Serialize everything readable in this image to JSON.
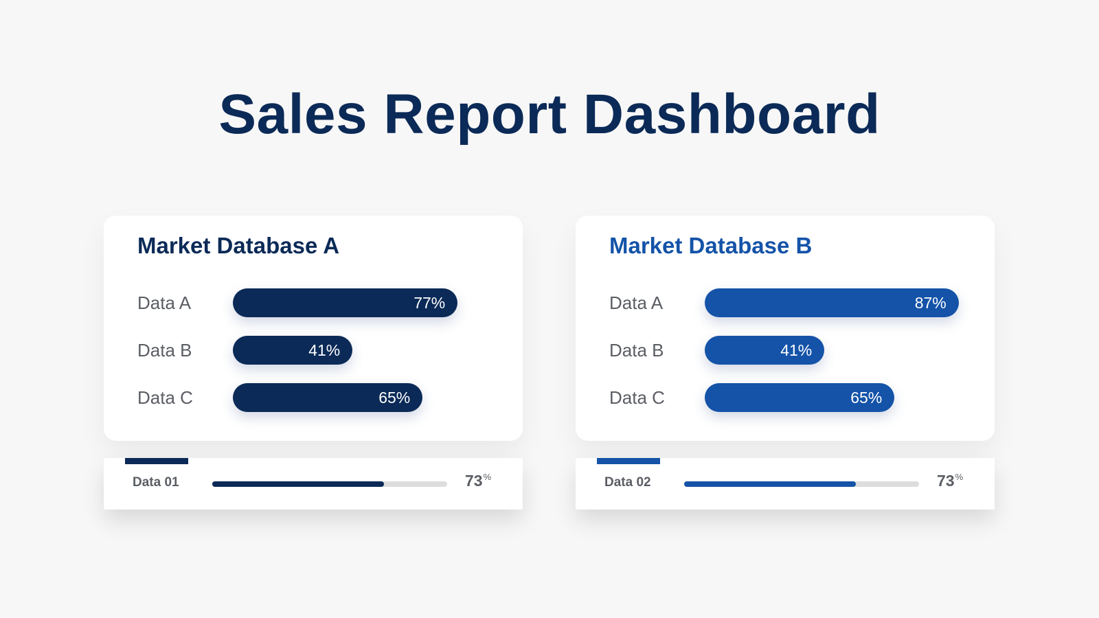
{
  "title": "Sales Report Dashboard",
  "colors": {
    "dark_navy": "#0b2a57",
    "royal_blue": "#1453a8",
    "track_gray": "#dddddd",
    "label_gray": "#5a5d63"
  },
  "chart_data": [
    {
      "type": "bar",
      "orientation": "horizontal",
      "title": "Market Database A",
      "categories": [
        "Data A",
        "Data B",
        "Data C"
      ],
      "values": [
        77,
        41,
        65
      ],
      "value_labels": [
        "77%",
        "41%",
        "65%"
      ],
      "unit": "%",
      "xlim": [
        0,
        100
      ],
      "grid": false,
      "color": "#0b2a57",
      "footer": {
        "label": "Data 01",
        "value": 73,
        "value_text": "73",
        "unit_text": "%"
      }
    },
    {
      "type": "bar",
      "orientation": "horizontal",
      "title": "Market Database B",
      "categories": [
        "Data A",
        "Data B",
        "Data C"
      ],
      "values": [
        87,
        41,
        65
      ],
      "value_labels": [
        "87%",
        "41%",
        "65%"
      ],
      "unit": "%",
      "xlim": [
        0,
        100
      ],
      "grid": false,
      "color": "#1453a8",
      "footer": {
        "label": "Data 02",
        "value": 73,
        "value_text": "73",
        "unit_text": "%"
      }
    }
  ]
}
